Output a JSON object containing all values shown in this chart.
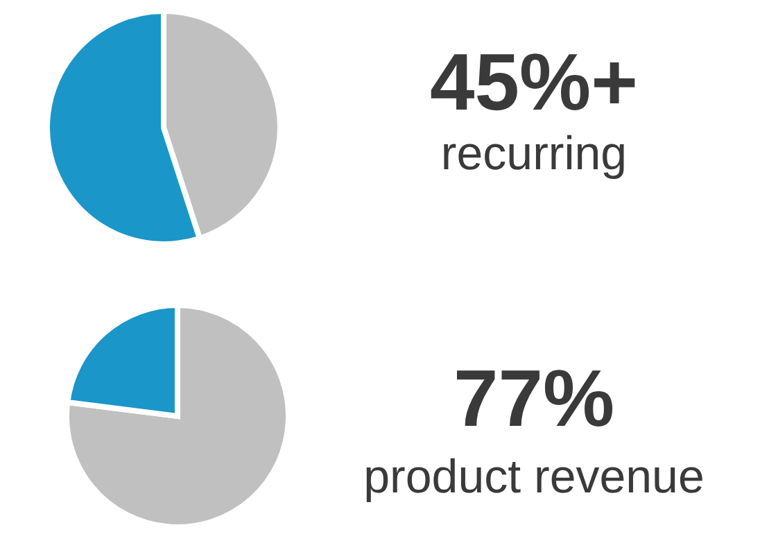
{
  "chart_data": [
    {
      "type": "pie",
      "title": "45%+",
      "subtitle": "recurring",
      "categories": [
        null,
        null
      ],
      "values": [
        45,
        55
      ],
      "colors": [
        "#c0c0c0",
        "#1a96c8"
      ]
    },
    {
      "type": "pie",
      "title": "77%",
      "subtitle": "product revenue",
      "categories": [
        null,
        null
      ],
      "values": [
        77,
        23
      ],
      "colors": [
        "#c0c0c0",
        "#1a96c8"
      ]
    }
  ]
}
